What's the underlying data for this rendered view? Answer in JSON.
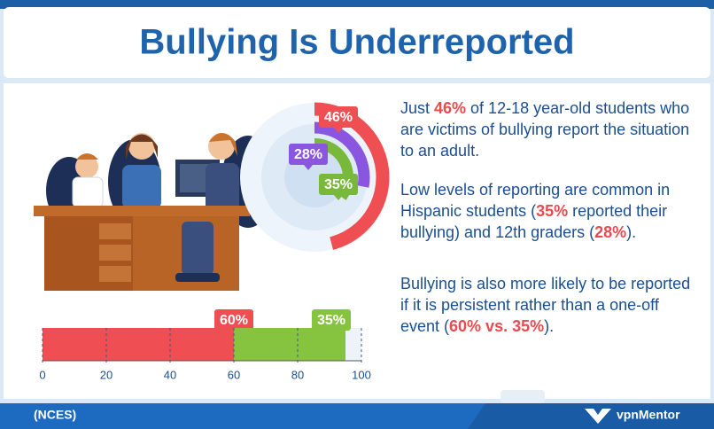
{
  "title": "Bullying Is Underreported",
  "chart_data": [
    {
      "type": "radial",
      "series": [
        {
          "color": "#ef4f52",
          "values": [
            46
          ],
          "value_labels": [
            "46%"
          ]
        },
        {
          "color": "#8a56e0",
          "values": [
            28
          ],
          "value_labels": [
            "28%"
          ]
        },
        {
          "color": "#78b83a",
          "values": [
            35
          ],
          "value_labels": [
            "35%"
          ]
        }
      ]
    },
    {
      "type": "stacked-bar",
      "series": [
        {
          "color": "#ef4f52",
          "values": [
            60
          ],
          "value_labels": [
            "60%"
          ]
        },
        {
          "color": "#86c440",
          "values": [
            35
          ],
          "value_labels": [
            "35%"
          ]
        }
      ],
      "xlim": [
        0,
        100
      ],
      "xticks": [
        0,
        20,
        40,
        60,
        80,
        100
      ]
    }
  ],
  "paragraphs": [
    [
      {
        "text": "Just "
      },
      {
        "text": "46%",
        "em": true
      },
      {
        "text": " of 12-18 year-old students who are victims of bullying report the situation to an adult."
      }
    ],
    [
      {
        "text": "Low levels of reporting are common in Hispanic students ("
      },
      {
        "text": "35%",
        "em": true
      },
      {
        "text": " reported their bullying) and 12th graders ("
      },
      {
        "text": "28%",
        "em": true
      },
      {
        "text": ")."
      }
    ],
    [
      {
        "text": "Bullying is also more likely to be reported if it is persistent rather than a one-off event ("
      },
      {
        "text": "60% vs. 35%",
        "em": true
      },
      {
        "text": ")."
      }
    ]
  ],
  "footer": {
    "source": "(NCES)",
    "brand": "vpnMentor"
  }
}
